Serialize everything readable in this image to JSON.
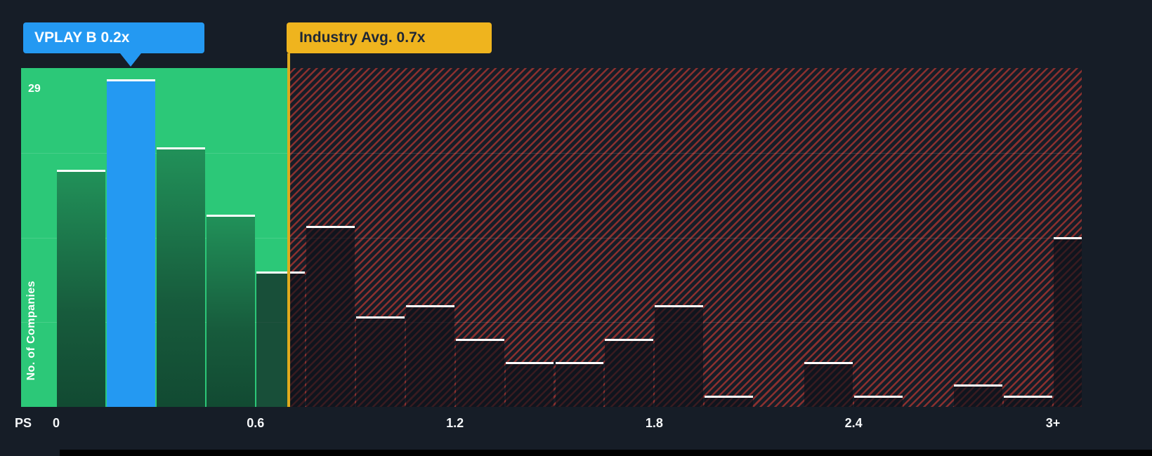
{
  "chart_data": {
    "type": "bar",
    "title": "",
    "xlabel_prefix": "PS",
    "ylabel": "No. of Companies",
    "y_max_label": "29",
    "y_max": 30,
    "x_start": 0,
    "bin_width": 0.15,
    "values": [
      21,
      29,
      23,
      17,
      12,
      16,
      8,
      9,
      6,
      4,
      4,
      6,
      9,
      1,
      0,
      4,
      1,
      0,
      2,
      1,
      15
    ],
    "x_ticks": [
      {
        "value": 0,
        "label": "0"
      },
      {
        "value": 0.6,
        "label": "0.6"
      },
      {
        "value": 1.2,
        "label": "1.2"
      },
      {
        "value": 1.8,
        "label": "1.8"
      },
      {
        "value": 2.4,
        "label": "2.4"
      },
      {
        "value": 3,
        "label": "3+"
      }
    ],
    "highlight": {
      "index": 1,
      "label": "VPLAY B 0.2x",
      "company": "VPLAY B",
      "value_text": "0.2x",
      "color": "#2499F2"
    },
    "marker": {
      "label": "Industry Avg. 0.7x",
      "value": 0.7,
      "color": "#EFB41E"
    },
    "zones": {
      "undervalued_color": "#2CC878",
      "overvalued_hatch_color": "#F44236"
    },
    "colors": {
      "background": "#161D27",
      "bar_top": "#FFFFFF",
      "gridline": "rgba(255,255,255,0.13)"
    },
    "legend_position": "none",
    "grid": true
  }
}
